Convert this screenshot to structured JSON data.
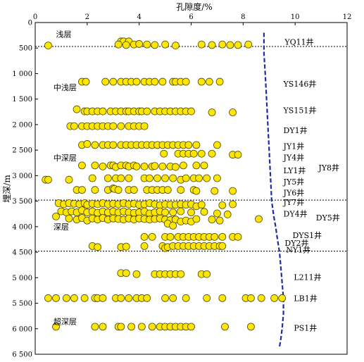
{
  "chart_data": {
    "type": "scatter",
    "title": "",
    "xlabel": "孔隙度/%",
    "ylabel": "埋深/m",
    "xlim": [
      0,
      12
    ],
    "ylim": [
      0,
      6500
    ],
    "x_ticks": [
      0,
      2,
      4,
      6,
      8,
      10,
      12
    ],
    "x_tick_labels": [
      "0",
      "2",
      "4",
      "6",
      "8",
      "10",
      "12"
    ],
    "y_ticks": [
      0,
      500,
      1000,
      1500,
      2000,
      2500,
      3000,
      3500,
      4000,
      4500,
      5000,
      5500,
      6000,
      6500
    ],
    "y_tick_labels": [
      "0",
      "500",
      "1 000",
      "1 500",
      "2 000",
      "2 500",
      "3 000",
      "3 500",
      "4 000",
      "4 500",
      "5 000",
      "5 500",
      "6 000",
      "6 500"
    ],
    "x_axis_position": "top",
    "y_reversed": true,
    "grid": false,
    "marker_color": "#FFE600",
    "marker_edge_color": "#4a4a00",
    "trend_color": "#1a2fa3",
    "zone_boundaries": [
      470,
      3480,
      4480
    ],
    "zones": [
      {
        "label": "浅层",
        "x": 0.8,
        "y": 230
      },
      {
        "label": "中浅层",
        "x": 0.7,
        "y": 1270
      },
      {
        "label": "中深层",
        "x": 0.7,
        "y": 2650
      },
      {
        "label": "深层",
        "x": 0.7,
        "y": 4000
      },
      {
        "label": "超深层",
        "x": 0.7,
        "y": 5860
      }
    ],
    "wells": [
      {
        "label": "YQ11井",
        "x": 9.6,
        "y": 380
      },
      {
        "label": "YS146井",
        "x": 9.55,
        "y": 1200
      },
      {
        "label": "YS151井",
        "x": 9.55,
        "y": 1720
      },
      {
        "label": "DY1井",
        "x": 9.55,
        "y": 2110
      },
      {
        "label": "JY1井",
        "x": 9.55,
        "y": 2420
      },
      {
        "label": "JY4井",
        "x": 9.55,
        "y": 2640
      },
      {
        "label": "LY1井",
        "x": 9.55,
        "y": 2900
      },
      {
        "label": "JY8井",
        "x": 10.9,
        "y": 2840
      },
      {
        "label": "JY5井",
        "x": 9.55,
        "y": 3120
      },
      {
        "label": "JY6井",
        "x": 9.55,
        "y": 3330
      },
      {
        "label": "JY7井",
        "x": 9.55,
        "y": 3520
      },
      {
        "label": "DY4井",
        "x": 9.55,
        "y": 3750
      },
      {
        "label": "DY5井",
        "x": 10.8,
        "y": 3820
      },
      {
        "label": "DYS1井",
        "x": 9.9,
        "y": 4170
      },
      {
        "label": "DY2井",
        "x": 9.6,
        "y": 4320
      },
      {
        "label": "NY1井",
        "x": 9.65,
        "y": 4450
      },
      {
        "label": "L211井",
        "x": 9.95,
        "y": 4990
      },
      {
        "label": "LB1井",
        "x": 9.95,
        "y": 5400
      },
      {
        "label": "PS1井",
        "x": 9.95,
        "y": 5980
      }
    ],
    "trend_line": {
      "x": [
        8.8,
        8.8,
        8.85,
        8.9,
        8.95,
        9.0,
        9.05,
        9.1,
        9.18,
        9.25,
        9.32,
        9.4,
        9.45,
        9.5,
        9.55,
        9.55,
        9.5,
        9.45,
        9.4
      ],
      "y": [
        200,
        600,
        1000,
        1500,
        2000,
        2500,
        3000,
        3500,
        3800,
        4000,
        4250,
        4500,
        4800,
        5100,
        5400,
        5700,
        6000,
        6200,
        6350
      ]
    },
    "series": [
      {
        "x": [
          3.3,
          3.4,
          3.6,
          0.5,
          3.2,
          3.5,
          3.8,
          4.0,
          4.3,
          4.6,
          5.0,
          5.4,
          6.4,
          6.8,
          7.2,
          7.5,
          7.8,
          8.2
        ],
        "y": [
          370,
          370,
          370,
          450,
          430,
          440,
          430,
          420,
          430,
          440,
          430,
          450,
          430,
          440,
          430,
          440,
          440,
          430
        ]
      },
      {
        "x": [
          1.8,
          1.95,
          2.7,
          3.0,
          3.3,
          3.5,
          3.7,
          3.9,
          4.2,
          4.4,
          4.6,
          4.9,
          5.3,
          5.4,
          5.6,
          5.8,
          6.4,
          6.7,
          7.1
        ],
        "y": [
          1160,
          1160,
          1160,
          1160,
          1160,
          1160,
          1160,
          1160,
          1160,
          1160,
          1160,
          1160,
          1160,
          1160,
          1160,
          1160,
          1160,
          1160,
          1160
        ]
      },
      {
        "x": [
          1.6,
          1.9,
          2.0,
          2.2,
          2.4,
          2.6,
          2.9,
          3.1,
          3.3,
          3.5,
          3.6,
          3.8,
          4.0,
          4.1,
          4.3,
          4.6,
          4.8,
          5.0,
          5.2,
          5.4,
          5.6,
          5.8,
          6.0,
          6.8,
          7.6
        ],
        "y": [
          1700,
          1740,
          1740,
          1740,
          1740,
          1740,
          1740,
          1740,
          1740,
          1740,
          1740,
          1740,
          1740,
          1740,
          1740,
          1740,
          1740,
          1740,
          1740,
          1740,
          1740,
          1740,
          1740,
          1760,
          1760
        ]
      },
      {
        "x": [
          1.35,
          1.5,
          1.8,
          2.0,
          2.2,
          2.4,
          2.6,
          2.8,
          3.0,
          3.3,
          3.6,
          3.8,
          4.0,
          4.2
        ],
        "y": [
          2030,
          2030,
          2030,
          2030,
          2030,
          2030,
          2030,
          2030,
          2030,
          2030,
          2030,
          2030,
          2030,
          2030
        ]
      },
      {
        "x": [
          1.8,
          2.0,
          2.3,
          2.6,
          2.8,
          3.0,
          3.3,
          3.5,
          3.7,
          3.9,
          4.1,
          4.3,
          4.5,
          4.7,
          4.9,
          5.1,
          5.3,
          5.5,
          5.7,
          5.9,
          6.2,
          7.0
        ],
        "y": [
          2400,
          2380,
          2400,
          2400,
          2400,
          2400,
          2400,
          2400,
          2400,
          2400,
          2400,
          2400,
          2400,
          2400,
          2400,
          2400,
          2400,
          2400,
          2400,
          2400,
          2400,
          2400
        ]
      },
      {
        "x": [
          4.95,
          5.5,
          5.7,
          5.9,
          6.1,
          6.4,
          6.8,
          7.6,
          7.8
        ],
        "y": [
          2570,
          2570,
          2570,
          2570,
          2570,
          2570,
          2570,
          2590,
          2590
        ]
      },
      {
        "x": [
          1.8,
          2.3,
          2.6,
          2.9,
          3.0,
          3.1,
          3.3,
          3.5,
          3.6,
          3.8,
          3.9,
          4.2,
          4.5,
          4.6,
          4.9,
          5.2,
          5.4,
          5.7,
          6.2,
          6.5
        ],
        "y": [
          2800,
          2800,
          2820,
          2800,
          2800,
          2830,
          2800,
          2800,
          2820,
          2800,
          2820,
          2820,
          2820,
          2810,
          2820,
          2820,
          2830,
          2800,
          2800,
          2800
        ]
      },
      {
        "x": [
          0.4,
          0.5,
          1.3,
          2.2,
          2.8,
          3.1,
          3.3,
          3.6,
          4.2,
          4.4,
          4.7,
          5.0,
          5.3,
          5.6,
          5.8,
          6.1,
          6.3,
          6.6,
          7.0
        ],
        "y": [
          3080,
          3080,
          3080,
          3050,
          3050,
          3050,
          3050,
          3050,
          3050,
          3050,
          3050,
          3050,
          3050,
          3080,
          3050,
          3050,
          3050,
          3050,
          3050
        ]
      },
      {
        "x": [
          1.6,
          1.8,
          2.3,
          2.8,
          3.0,
          3.05,
          3.2,
          3.6,
          3.8,
          4.3,
          4.5,
          4.7,
          4.9,
          5.1,
          5.6,
          6.1,
          6.2,
          6.9,
          7.6
        ],
        "y": [
          3280,
          3280,
          3280,
          3280,
          3250,
          3260,
          3280,
          3280,
          3280,
          3280,
          3280,
          3280,
          3280,
          3280,
          3280,
          3280,
          3300,
          3300,
          3300
        ]
      },
      {
        "x": [
          0.9,
          1.1,
          1.3,
          1.5,
          1.7,
          1.9,
          2.0,
          2.2,
          2.4,
          2.6,
          2.8,
          3.0,
          3.2,
          3.4,
          3.6,
          3.8,
          4.0,
          4.2,
          4.4,
          4.6,
          4.8,
          5.0,
          5.2,
          5.4,
          5.6,
          5.8,
          6.0,
          6.2,
          6.4,
          7.2,
          7.6
        ],
        "y": [
          3540,
          3560,
          3540,
          3550,
          3560,
          3540,
          3570,
          3550,
          3560,
          3540,
          3560,
          3550,
          3560,
          3540,
          3560,
          3550,
          3570,
          3560,
          3540,
          3560,
          3580,
          3560,
          3570,
          3570,
          3560,
          3570,
          3560,
          3600,
          3570,
          3580,
          3560
        ]
      },
      {
        "x": [
          0.8,
          1.0,
          1.2,
          1.4,
          1.6,
          1.8,
          2.0,
          2.2,
          2.4,
          2.6,
          2.8,
          3.0,
          3.2,
          3.4,
          3.6,
          3.8,
          4.0,
          4.2,
          4.4,
          4.6,
          4.8,
          5.0,
          5.3,
          5.6,
          6.0,
          6.5,
          7.0,
          7.4,
          8.6
        ],
        "y": [
          3800,
          3700,
          3720,
          3700,
          3720,
          3680,
          3720,
          3700,
          3730,
          3700,
          3720,
          3700,
          3720,
          3700,
          3720,
          3730,
          3720,
          3700,
          3740,
          3720,
          3700,
          3720,
          3720,
          3700,
          3720,
          3710,
          3740,
          3760,
          3850
        ]
      },
      {
        "x": [
          1.3,
          1.6,
          1.8,
          2.0,
          2.2,
          2.4,
          2.6,
          2.8,
          3.0,
          3.2,
          3.4,
          3.6,
          3.8,
          4.0,
          4.2,
          4.4,
          4.6,
          4.8,
          5.0,
          5.2,
          5.4,
          5.6,
          5.8,
          6.0,
          6.2,
          6.8,
          7.1
        ],
        "y": [
          3840,
          3860,
          3830,
          3880,
          3840,
          3860,
          3830,
          3860,
          3840,
          3850,
          3860,
          3840,
          3860,
          3840,
          3850,
          3860,
          3850,
          3840,
          3860,
          3870,
          3860,
          3900,
          3880,
          3900,
          3850,
          3860,
          3880
        ]
      },
      {
        "x": [
          5.1,
          5.3
        ],
        "y": [
          3940,
          3980
        ]
      },
      {
        "x": [
          4.2,
          4.5,
          5.0,
          5.2,
          5.5,
          5.7,
          5.9,
          6.1,
          6.3,
          6.5,
          6.7,
          6.9,
          7.2,
          7.6,
          7.8
        ],
        "y": [
          4200,
          4200,
          4200,
          4200,
          4200,
          4200,
          4200,
          4200,
          4200,
          4200,
          4200,
          4200,
          4200,
          4200,
          4200
        ]
      },
      {
        "x": [
          2.2,
          2.4,
          3.3,
          3.5,
          4.2,
          4.9,
          5.0,
          5.1,
          5.3,
          5.5,
          5.7,
          5.9,
          6.1,
          6.3,
          6.5,
          6.7,
          6.9,
          7.1,
          7.2
        ],
        "y": [
          4380,
          4400,
          4400,
          4390,
          4380,
          4380,
          4420,
          4400,
          4380,
          4380,
          4380,
          4380,
          4380,
          4380,
          4380,
          4380,
          4380,
          4380,
          4380
        ]
      },
      {
        "x": [
          3.3,
          3.5,
          3.9,
          4.6,
          4.8,
          5.0,
          5.2,
          5.4,
          5.6,
          6.4,
          6.6
        ],
        "y": [
          4910,
          4910,
          4930,
          4930,
          4930,
          4930,
          4930,
          4930,
          4930,
          4930,
          4930
        ]
      },
      {
        "x": [
          0.5,
          0.8,
          1.2,
          1.5,
          1.9,
          2.3,
          2.4,
          2.6,
          3.1,
          3.3,
          3.6,
          3.9,
          4.1,
          4.3,
          5.0,
          5.3,
          5.8,
          6.6,
          7.2,
          8.1,
          8.3,
          8.7,
          9.2,
          9.5
        ],
        "y": [
          5400,
          5400,
          5400,
          5400,
          5400,
          5400,
          5400,
          5400,
          5400,
          5400,
          5400,
          5400,
          5400,
          5400,
          5400,
          5400,
          5400,
          5400,
          5400,
          5400,
          5400,
          5400,
          5400,
          5400
        ]
      },
      {
        "x": [
          0.8,
          2.3,
          2.6,
          3.2,
          3.3,
          3.7,
          4.1,
          4.5,
          4.8,
          5.0,
          5.2,
          5.4,
          5.6,
          5.8,
          6.0,
          7.3,
          8.3
        ],
        "y": [
          5960,
          5960,
          5960,
          5960,
          5960,
          5960,
          5960,
          5960,
          5960,
          5960,
          5960,
          5960,
          5960,
          5960,
          5960,
          5960,
          5960
        ]
      }
    ]
  }
}
